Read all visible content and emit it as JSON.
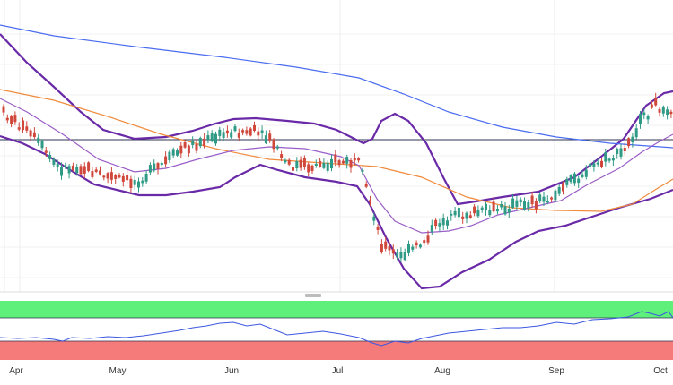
{
  "chart_data": {
    "type": "candlestick",
    "x_axis_labels": [
      "Apr",
      "May",
      "Jun",
      "Jul",
      "Aug",
      "Sep",
      "Oct"
    ],
    "grid": true,
    "horizontal_reference_line": true,
    "indicator_panel": {
      "series": "oscillator line",
      "zones": [
        {
          "name": "upper zone",
          "color": "#5ef07a"
        },
        {
          "name": "lower zone",
          "color": "#f57a7a"
        }
      ]
    },
    "overlays": [
      {
        "name": "long moving average",
        "color": "#4a6cf0"
      },
      {
        "name": "medium moving average",
        "color": "#f08a3c"
      },
      {
        "name": "short moving average",
        "color": "#9a5ec8"
      },
      {
        "name": "bollinger bands",
        "color": "#6a2aa8"
      }
    ],
    "candle_colors": {
      "up": "#2f9a86",
      "down": "#d0473c"
    }
  }
}
